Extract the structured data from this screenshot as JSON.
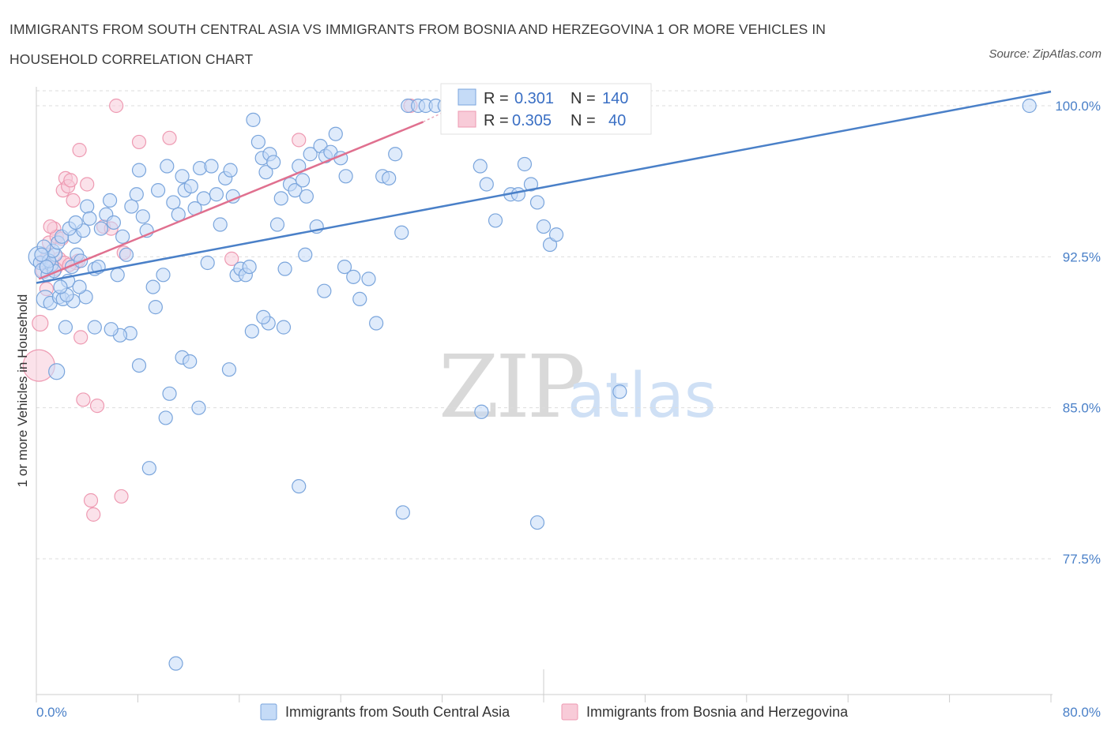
{
  "title": "IMMIGRANTS FROM SOUTH CENTRAL ASIA VS IMMIGRANTS FROM BOSNIA AND HERZEGOVINA 1 OR MORE VEHICLES IN HOUSEHOLD CORRELATION CHART",
  "source": "Source: ZipAtlas.com",
  "watermark": {
    "zip": "ZIP",
    "atlas": "atlas"
  },
  "colors": {
    "blue": "#4a80c8",
    "blue_fill": "#c5dbf7",
    "blue_stroke": "#7aa5dc",
    "pink": "#e0708f",
    "pink_fill": "#f8cbd8",
    "pink_stroke": "#ee9ab2",
    "grid": "#dddddd"
  },
  "legend": {
    "series1": {
      "r_label": "R =",
      "r_value": "0.301",
      "n_label": "N =",
      "n_value": "140"
    },
    "series2": {
      "r_label": "R =",
      "r_value": "0.305",
      "n_label": "N =",
      "n_value": "40"
    }
  },
  "chart_data": {
    "type": "scatter",
    "xlabel": "",
    "ylabel": "1 or more Vehicles in Household",
    "xlim": [
      0,
      80
    ],
    "ylim": [
      70,
      100.8
    ],
    "x_tick_labels": [
      "0.0%",
      "80.0%"
    ],
    "y_ticks": [
      77.5,
      85.0,
      92.5,
      100.0
    ],
    "y_tick_labels": [
      "77.5%",
      "85.0%",
      "92.5%",
      "100.0%"
    ],
    "grid": "horizontal dashed",
    "legend_position": "top-center",
    "series": [
      {
        "name": "Immigrants from South Central Asia",
        "color": "#4a80c8",
        "trend": {
          "x": [
            0,
            80
          ],
          "y": [
            91.2,
            100.7
          ]
        },
        "points": [
          [
            0.2,
            92.5
          ],
          [
            0.3,
            92.2
          ],
          [
            0.5,
            91.8
          ],
          [
            0.7,
            90.4
          ],
          [
            0.9,
            91.6
          ],
          [
            1.2,
            92.1
          ],
          [
            1.5,
            92.6
          ],
          [
            1.4,
            91.8
          ],
          [
            1.1,
            90.2
          ],
          [
            1.8,
            90.5
          ],
          [
            2.1,
            90.4
          ],
          [
            2.3,
            89.0
          ],
          [
            1.6,
            86.8
          ],
          [
            2.5,
            91.3
          ],
          [
            2.8,
            92.0
          ],
          [
            3.0,
            93.5
          ],
          [
            3.2,
            92.6
          ],
          [
            3.5,
            92.3
          ],
          [
            3.7,
            93.8
          ],
          [
            4.0,
            95.0
          ],
          [
            4.2,
            94.4
          ],
          [
            4.6,
            91.9
          ],
          [
            4.9,
            92.0
          ],
          [
            5.1,
            93.9
          ],
          [
            5.5,
            94.6
          ],
          [
            5.8,
            95.3
          ],
          [
            6.1,
            94.2
          ],
          [
            6.4,
            91.6
          ],
          [
            6.8,
            93.5
          ],
          [
            7.1,
            92.6
          ],
          [
            7.5,
            95.0
          ],
          [
            7.9,
            95.6
          ],
          [
            8.1,
            96.8
          ],
          [
            8.4,
            94.5
          ],
          [
            8.7,
            93.8
          ],
          [
            9.2,
            91.0
          ],
          [
            9.6,
            95.8
          ],
          [
            10.0,
            91.6
          ],
          [
            10.3,
            97.0
          ],
          [
            10.8,
            95.2
          ],
          [
            11.2,
            94.6
          ],
          [
            11.5,
            96.5
          ],
          [
            11.7,
            95.8
          ],
          [
            12.2,
            96.0
          ],
          [
            12.5,
            94.9
          ],
          [
            12.9,
            96.9
          ],
          [
            13.2,
            95.4
          ],
          [
            13.5,
            92.2
          ],
          [
            13.8,
            97.0
          ],
          [
            14.2,
            95.6
          ],
          [
            14.5,
            94.1
          ],
          [
            14.9,
            96.4
          ],
          [
            15.3,
            96.8
          ],
          [
            15.5,
            95.5
          ],
          [
            15.8,
            91.6
          ],
          [
            16.1,
            91.9
          ],
          [
            16.5,
            91.6
          ],
          [
            16.8,
            92.0
          ],
          [
            17.1,
            99.3
          ],
          [
            17.5,
            98.2
          ],
          [
            17.8,
            97.4
          ],
          [
            18.1,
            96.7
          ],
          [
            18.4,
            97.6
          ],
          [
            18.7,
            97.2
          ],
          [
            19.0,
            94.1
          ],
          [
            19.3,
            95.4
          ],
          [
            19.6,
            91.9
          ],
          [
            20.0,
            96.1
          ],
          [
            20.4,
            95.8
          ],
          [
            20.7,
            97.0
          ],
          [
            21.0,
            96.3
          ],
          [
            21.3,
            95.5
          ],
          [
            21.6,
            97.6
          ],
          [
            22.1,
            94.0
          ],
          [
            22.4,
            98.0
          ],
          [
            22.8,
            97.5
          ],
          [
            23.2,
            97.7
          ],
          [
            23.6,
            98.6
          ],
          [
            24.0,
            97.4
          ],
          [
            24.4,
            96.5
          ],
          [
            25.0,
            91.5
          ],
          [
            25.5,
            90.4
          ],
          [
            26.2,
            91.4
          ],
          [
            26.8,
            89.2
          ],
          [
            27.3,
            96.5
          ],
          [
            27.8,
            96.4
          ],
          [
            28.3,
            97.6
          ],
          [
            28.8,
            93.7
          ],
          [
            29.3,
            100.0
          ],
          [
            30.1,
            100.0
          ],
          [
            30.7,
            100.0
          ],
          [
            31.5,
            100.0
          ],
          [
            32.2,
            100.0
          ],
          [
            33.1,
            100.0
          ],
          [
            33.6,
            100.0
          ],
          [
            34.2,
            100.0
          ],
          [
            35.0,
            97.0
          ],
          [
            35.5,
            96.1
          ],
          [
            36.2,
            94.3
          ],
          [
            37.4,
            95.6
          ],
          [
            38.0,
            95.6
          ],
          [
            38.5,
            97.1
          ],
          [
            39.0,
            96.1
          ],
          [
            39.5,
            95.2
          ],
          [
            40.0,
            94.0
          ],
          [
            40.5,
            93.1
          ],
          [
            41.0,
            93.6
          ],
          [
            46.0,
            85.8
          ],
          [
            39.5,
            79.3
          ],
          [
            35.1,
            84.8
          ],
          [
            28.9,
            79.8
          ],
          [
            20.7,
            81.1
          ],
          [
            19.5,
            89.0
          ],
          [
            18.3,
            89.2
          ],
          [
            17.0,
            88.8
          ],
          [
            15.2,
            86.9
          ],
          [
            12.8,
            85.0
          ],
          [
            10.5,
            85.7
          ],
          [
            8.9,
            82.0
          ],
          [
            10.2,
            84.5
          ],
          [
            11.5,
            87.5
          ],
          [
            12.1,
            87.3
          ],
          [
            9.4,
            90.0
          ],
          [
            8.1,
            87.1
          ],
          [
            7.4,
            88.7
          ],
          [
            6.6,
            88.6
          ],
          [
            5.9,
            88.9
          ],
          [
            4.6,
            89.0
          ],
          [
            3.9,
            90.5
          ],
          [
            3.4,
            91.0
          ],
          [
            2.9,
            90.3
          ],
          [
            2.4,
            90.6
          ],
          [
            1.9,
            91.0
          ],
          [
            1.0,
            92.3
          ],
          [
            1.3,
            92.8
          ],
          [
            0.6,
            93.0
          ],
          [
            0.8,
            92.0
          ],
          [
            0.4,
            92.6
          ],
          [
            1.7,
            93.2
          ],
          [
            2.0,
            93.5
          ],
          [
            2.6,
            93.9
          ],
          [
            3.1,
            94.2
          ],
          [
            11.0,
            72.3
          ],
          [
            78.3,
            100.0
          ],
          [
            17.9,
            89.5
          ],
          [
            21.2,
            92.6
          ],
          [
            22.7,
            90.8
          ],
          [
            24.3,
            92.0
          ]
        ]
      },
      {
        "name": "Immigrants from Bosnia and Herzegovina",
        "color": "#e0708f",
        "trend": {
          "x": [
            0.2,
            30.5
          ],
          "y": [
            91.4,
            99.2
          ]
        },
        "points": [
          [
            0.2,
            87.1
          ],
          [
            0.3,
            89.2
          ],
          [
            0.5,
            91.8
          ],
          [
            0.6,
            92.3
          ],
          [
            0.8,
            90.9
          ],
          [
            1.0,
            93.2
          ],
          [
            1.2,
            92.0
          ],
          [
            1.4,
            93.9
          ],
          [
            1.6,
            93.5
          ],
          [
            1.8,
            92.4
          ],
          [
            2.0,
            93.4
          ],
          [
            2.1,
            95.8
          ],
          [
            2.3,
            96.4
          ],
          [
            2.5,
            96.0
          ],
          [
            2.7,
            96.3
          ],
          [
            2.9,
            95.3
          ],
          [
            3.1,
            92.2
          ],
          [
            3.3,
            92.3
          ],
          [
            3.5,
            88.5
          ],
          [
            3.7,
            85.4
          ],
          [
            4.0,
            96.1
          ],
          [
            4.3,
            80.4
          ],
          [
            4.5,
            79.7
          ],
          [
            4.8,
            85.1
          ],
          [
            5.3,
            94.0
          ],
          [
            5.9,
            93.9
          ],
          [
            6.3,
            100.0
          ],
          [
            6.7,
            80.6
          ],
          [
            6.9,
            92.7
          ],
          [
            8.1,
            98.2
          ],
          [
            10.5,
            98.4
          ],
          [
            15.4,
            92.4
          ],
          [
            20.7,
            98.3
          ],
          [
            29.5,
            100.0
          ],
          [
            3.4,
            97.8
          ],
          [
            1.1,
            94.0
          ],
          [
            2.2,
            92.2
          ],
          [
            0.9,
            92.6
          ],
          [
            1.5,
            91.9
          ],
          [
            2.6,
            92.1
          ]
        ]
      }
    ]
  }
}
